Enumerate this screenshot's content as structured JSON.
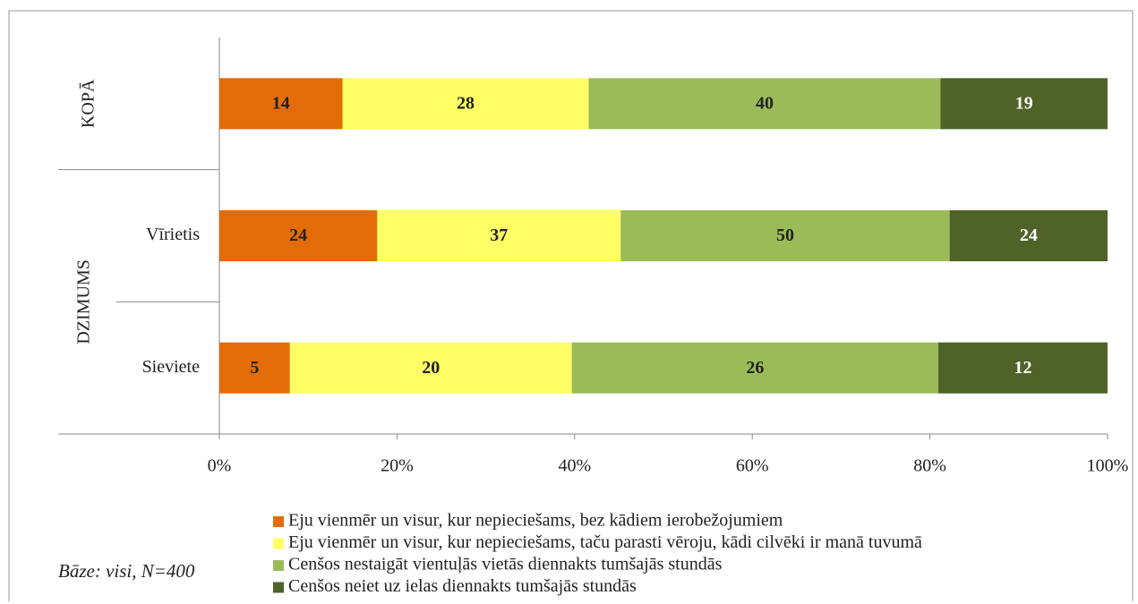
{
  "chart_data": {
    "type": "bar",
    "orientation": "horizontal",
    "stacking": "percent",
    "categories": [
      null,
      "Vīrietis",
      "Sieviete"
    ],
    "groups": [
      {
        "label": "KOPĀ",
        "start": 0,
        "end": 0
      },
      {
        "label": "DZIMUMS",
        "start": 1,
        "end": 2
      }
    ],
    "series": [
      {
        "name": "Eju vienmēr un visur, kur nepieciešams, bez kādiem ierobežojumiem",
        "color": "#e36c09",
        "values": [
          14,
          24,
          5
        ]
      },
      {
        "name": "Eju vienmēr un visur, kur nepieciešams, taču parasti vēroju, kādi cilvēki ir manā tuvumā",
        "color": "#ffff66",
        "values": [
          28,
          37,
          20
        ]
      },
      {
        "name": "Cenšos nestaigāt vientuļās vietās diennakts tumšajās stundās",
        "color": "#9bbb59",
        "values": [
          40,
          50,
          26
        ]
      },
      {
        "name": "Cenšos neiet uz ielas diennakts tumšajās stundās",
        "color": "#4f6228",
        "values": [
          19,
          24,
          12
        ]
      }
    ],
    "xlim": [
      0,
      100
    ],
    "xticks": [
      {
        "value": 0,
        "label": "0%"
      },
      {
        "value": 20,
        "label": "20%"
      },
      {
        "value": 40,
        "label": "40%"
      },
      {
        "value": 60,
        "label": "60%"
      },
      {
        "value": 80,
        "label": "80%"
      },
      {
        "value": 100,
        "label": "100%"
      }
    ],
    "annotation": "Bāze: visi, N=400"
  }
}
